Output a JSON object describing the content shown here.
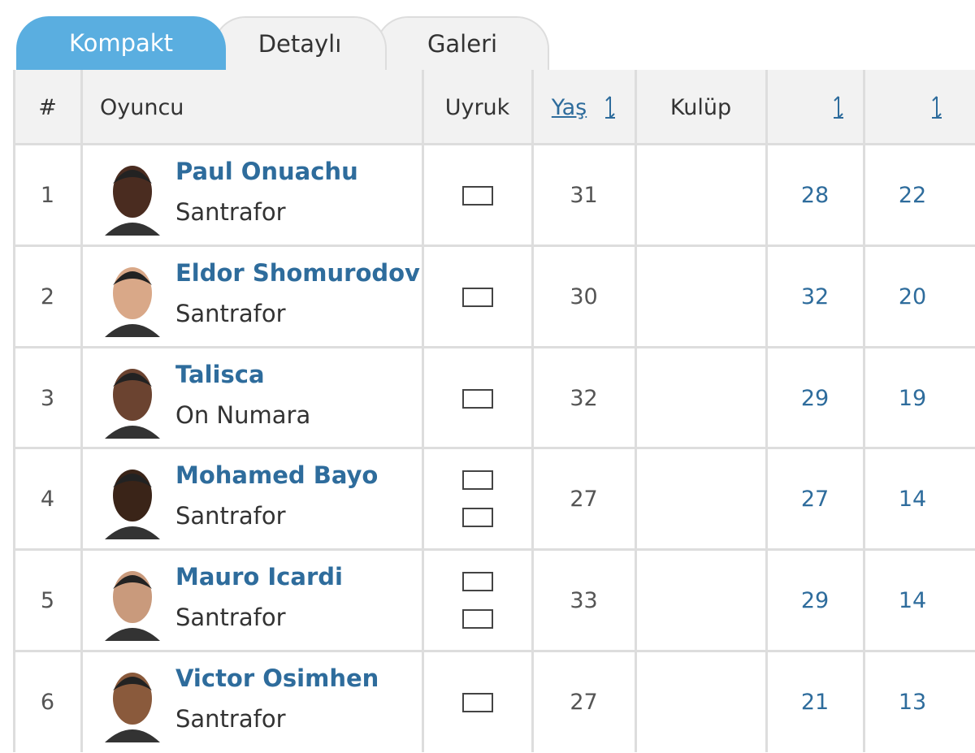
{
  "tabs": [
    "Kompakt",
    "Detaylı",
    "Galeri"
  ],
  "table": {
    "headers": [
      "#",
      "Oyuncu",
      "Uyruk",
      "Yaş",
      "Kulüp"
    ],
    "rows": [
      {
        "rank": 1,
        "name": "Paul Onuachu",
        "position": "Santrafor",
        "age": 31,
        "stat1": 28,
        "stat2": 22
      },
      {
        "rank": 2,
        "name": "Eldor Shomurodov",
        "position": "Santrafor",
        "age": 30,
        "stat1": 32,
        "stat2": 20
      },
      {
        "rank": 3,
        "name": "Talisca",
        "position": "On Numara",
        "age": 32,
        "stat1": 29,
        "stat2": 19
      },
      {
        "rank": 4,
        "name": "Mohamed Bayo",
        "position": "Santrafor",
        "age": 27,
        "stat1": 27,
        "stat2": 14
      },
      {
        "rank": 5,
        "name": "Mauro Icardi",
        "position": "Santrafor",
        "age": 33,
        "stat1": 29,
        "stat2": 14
      },
      {
        "rank": 6,
        "name": "Victor Osimhen",
        "position": "Santrafor",
        "age": 27,
        "stat1": 21,
        "stat2": 13
      }
    ]
  }
}
